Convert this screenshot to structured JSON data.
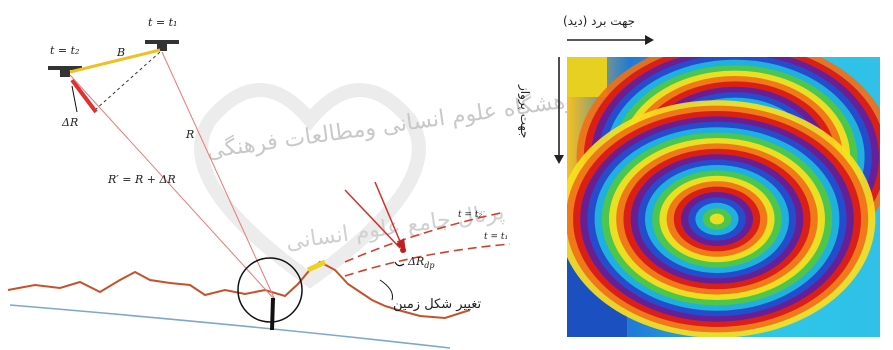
{
  "geometry_panel": {
    "label_t_t2": "t = t₂",
    "label_t_t1": "t = t₁",
    "label_B": "B",
    "label_delta_R": "ΔR",
    "label_R": "R",
    "label_R_prime": "R′ = R + ΔR",
    "label_t_t2_right": "t = t₂",
    "label_t_t1_right": "t = t₁",
    "label_delta_R_dp": "ΔR",
    "label_delta_R_dp_sub": "dp",
    "label_deformation": "تغییر شکل زمین",
    "watermark_line_1": "پژوهشگاه علوم انسانی ومطالعات فرهنگی",
    "watermark_line_2": "پرتال جامع علوم انسانی"
  },
  "interferogram_panel": {
    "label_look_direction": "جهت برد (دید)",
    "label_flight_direction": "جهت پرواز"
  },
  "colors": {
    "red_ray": "#e03a3a",
    "baseline": "#f0c020",
    "terrain": "#c8502a",
    "reference_surface": "#7aa8d0"
  }
}
